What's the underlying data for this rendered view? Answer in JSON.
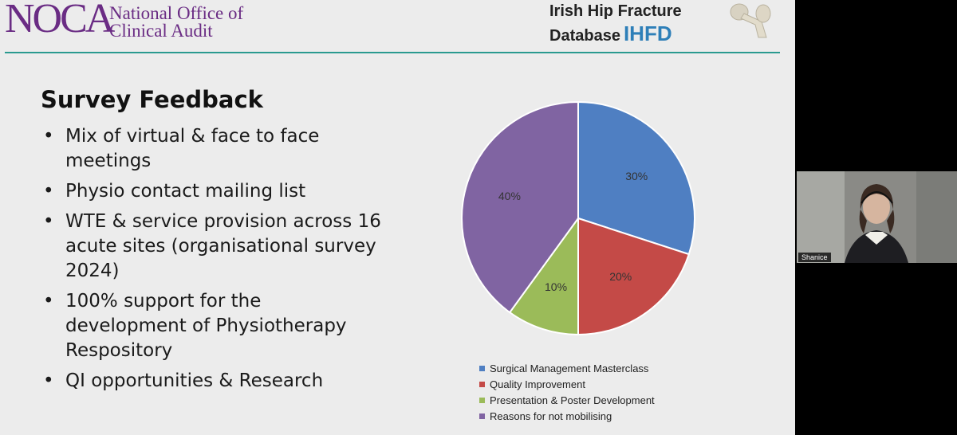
{
  "header": {
    "org_logo_text": "NOCA",
    "org_name_line1": "National Office of",
    "org_name_line2": "Clinical Audit",
    "db_name_line1": "Irish Hip Fracture",
    "db_name_line2": "Database",
    "db_abbr": "IHFD",
    "accent_color": "#2a9a8f",
    "org_color": "#6a2c84",
    "db_accent_color": "#2e7fb8"
  },
  "slide": {
    "title": "Survey Feedback",
    "bullets": [
      "Mix of virtual & face to face meetings",
      "Physio contact mailing list",
      "WTE & service provision across 16 acute sites (organisational survey 2024)",
      "100% support for the development of Physiotherapy Respository",
      " QI opportunities & Research"
    ],
    "bullet_glyph": "•"
  },
  "chart_data": {
    "type": "pie",
    "categories": [
      "Surgical Management Masterclass",
      "Quality Improvement",
      "Presentation & Poster Development",
      "Reasons for not mobilising"
    ],
    "values": [
      30,
      20,
      10,
      40
    ],
    "labels": [
      "30%",
      "20%",
      "10%",
      "40%"
    ],
    "colors": [
      "#4f7fc2",
      "#c44a47",
      "#9bbb59",
      "#8064a2"
    ],
    "legend_position": "bottom",
    "title": ""
  },
  "video": {
    "participant_name": "Shanice"
  }
}
